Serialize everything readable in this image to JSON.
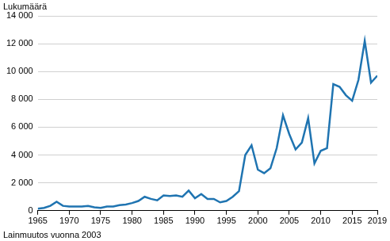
{
  "chart_data": {
    "type": "line",
    "y_label": "Lukumäärä",
    "annotation": "Lainmuutos vuonna 2003",
    "x": [
      1965,
      1966,
      1967,
      1968,
      1969,
      1970,
      1971,
      1972,
      1973,
      1974,
      1975,
      1976,
      1977,
      1978,
      1979,
      1980,
      1981,
      1982,
      1983,
      1984,
      1985,
      1986,
      1987,
      1988,
      1989,
      1990,
      1991,
      1992,
      1993,
      1994,
      1995,
      1996,
      1997,
      1998,
      1999,
      2000,
      2001,
      2002,
      2003,
      2004,
      2005,
      2006,
      2007,
      2008,
      2009,
      2010,
      2011,
      2012,
      2013,
      2014,
      2015,
      2016,
      2017,
      2018,
      2019
    ],
    "values": [
      150,
      200,
      350,
      650,
      350,
      300,
      300,
      300,
      350,
      250,
      200,
      300,
      300,
      400,
      450,
      550,
      700,
      1000,
      850,
      750,
      1100,
      1050,
      1100,
      1000,
      1450,
      900,
      1200,
      850,
      850,
      600,
      700,
      1000,
      1400,
      4000,
      4700,
      2950,
      2700,
      3050,
      4500,
      6850,
      5500,
      4400,
      4900,
      6650,
      3400,
      4300,
      4500,
      9100,
      8900,
      8300,
      7900,
      9400,
      12200,
      9200,
      9700
    ],
    "color": "#1f74b1",
    "xlim": [
      1965,
      2019
    ],
    "xticks": [
      1965,
      1970,
      1975,
      1980,
      1985,
      1990,
      1995,
      2000,
      2005,
      2010,
      2015,
      2019
    ],
    "ylim": [
      0,
      14000
    ],
    "yticks": [
      0,
      {
        "value": 2000,
        "label": "2 000"
      },
      {
        "value": 4000,
        "label": "4 000"
      },
      {
        "value": 6000,
        "label": "6 000"
      },
      {
        "value": 8000,
        "label": "8 000"
      },
      {
        "value": 10000,
        "label": "10 000"
      },
      {
        "value": 12000,
        "label": "12 000"
      },
      {
        "value": 14000,
        "label": "14 000"
      }
    ],
    "grid": "y"
  }
}
